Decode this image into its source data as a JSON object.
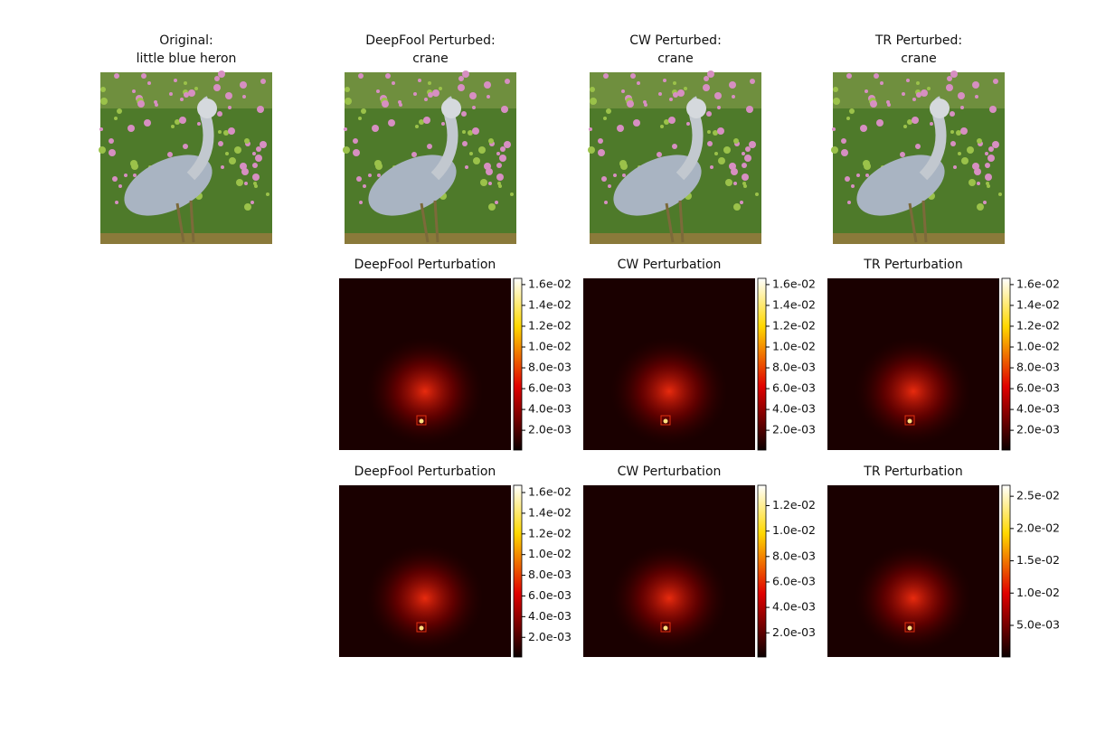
{
  "images": [
    {
      "title": [
        "Original:",
        "little blue heron"
      ]
    },
    {
      "title": [
        "DeepFool Perturbed:",
        "crane"
      ]
    },
    {
      "title": [
        "CW Perturbed:",
        "crane"
      ]
    },
    {
      "title": [
        "TR Perturbed:",
        "crane"
      ]
    }
  ],
  "perturbations": [
    {
      "title": "DeepFool Perturbation",
      "colorbar": {
        "range": [
          0.0001,
          0.0166
        ],
        "ticks": [
          {
            "value": 0.002,
            "label": "2.0e-03"
          },
          {
            "value": 0.004,
            "label": "4.0e-03"
          },
          {
            "value": 0.006,
            "label": "6.0e-03"
          },
          {
            "value": 0.008,
            "label": "8.0e-03"
          },
          {
            "value": 0.01,
            "label": "1.0e-02"
          },
          {
            "value": 0.012,
            "label": "1.2e-02"
          },
          {
            "value": 0.014,
            "label": "1.4e-02"
          },
          {
            "value": 0.016,
            "label": "1.6e-02"
          }
        ]
      }
    },
    {
      "title": "CW Perturbation",
      "colorbar": {
        "range": [
          0.0001,
          0.0166
        ],
        "ticks": [
          {
            "value": 0.002,
            "label": "2.0e-03"
          },
          {
            "value": 0.004,
            "label": "4.0e-03"
          },
          {
            "value": 0.006,
            "label": "6.0e-03"
          },
          {
            "value": 0.008,
            "label": "8.0e-03"
          },
          {
            "value": 0.01,
            "label": "1.0e-02"
          },
          {
            "value": 0.012,
            "label": "1.2e-02"
          },
          {
            "value": 0.014,
            "label": "1.4e-02"
          },
          {
            "value": 0.016,
            "label": "1.6e-02"
          }
        ]
      }
    },
    {
      "title": "TR Perturbation",
      "colorbar": {
        "range": [
          0.0001,
          0.0166
        ],
        "ticks": [
          {
            "value": 0.002,
            "label": "2.0e-03"
          },
          {
            "value": 0.004,
            "label": "4.0e-03"
          },
          {
            "value": 0.006,
            "label": "6.0e-03"
          },
          {
            "value": 0.008,
            "label": "8.0e-03"
          },
          {
            "value": 0.01,
            "label": "1.0e-02"
          },
          {
            "value": 0.012,
            "label": "1.2e-02"
          },
          {
            "value": 0.014,
            "label": "1.4e-02"
          },
          {
            "value": 0.016,
            "label": "1.6e-02"
          }
        ]
      }
    },
    {
      "title": "DeepFool Perturbation",
      "colorbar": {
        "range": [
          0.0001,
          0.0167
        ],
        "ticks": [
          {
            "value": 0.002,
            "label": "2.0e-03"
          },
          {
            "value": 0.004,
            "label": "4.0e-03"
          },
          {
            "value": 0.006,
            "label": "6.0e-03"
          },
          {
            "value": 0.008,
            "label": "8.0e-03"
          },
          {
            "value": 0.01,
            "label": "1.0e-02"
          },
          {
            "value": 0.012,
            "label": "1.2e-02"
          },
          {
            "value": 0.014,
            "label": "1.4e-02"
          },
          {
            "value": 0.016,
            "label": "1.6e-02"
          }
        ]
      }
    },
    {
      "title": "CW Perturbation",
      "colorbar": {
        "range": [
          0.0001,
          0.0136
        ],
        "ticks": [
          {
            "value": 0.002,
            "label": "2.0e-03"
          },
          {
            "value": 0.004,
            "label": "4.0e-03"
          },
          {
            "value": 0.006,
            "label": "6.0e-03"
          },
          {
            "value": 0.008,
            "label": "8.0e-03"
          },
          {
            "value": 0.01,
            "label": "1.0e-02"
          },
          {
            "value": 0.012,
            "label": "1.2e-02"
          }
        ]
      }
    },
    {
      "title": "TR Perturbation",
      "colorbar": {
        "range": [
          0.0001,
          0.0267
        ],
        "ticks": [
          {
            "value": 0.005,
            "label": "5.0e-03"
          },
          {
            "value": 0.01,
            "label": "1.0e-02"
          },
          {
            "value": 0.015,
            "label": "1.5e-02"
          },
          {
            "value": 0.02,
            "label": "2.0e-02"
          },
          {
            "value": 0.025,
            "label": "2.5e-02"
          }
        ]
      }
    }
  ]
}
